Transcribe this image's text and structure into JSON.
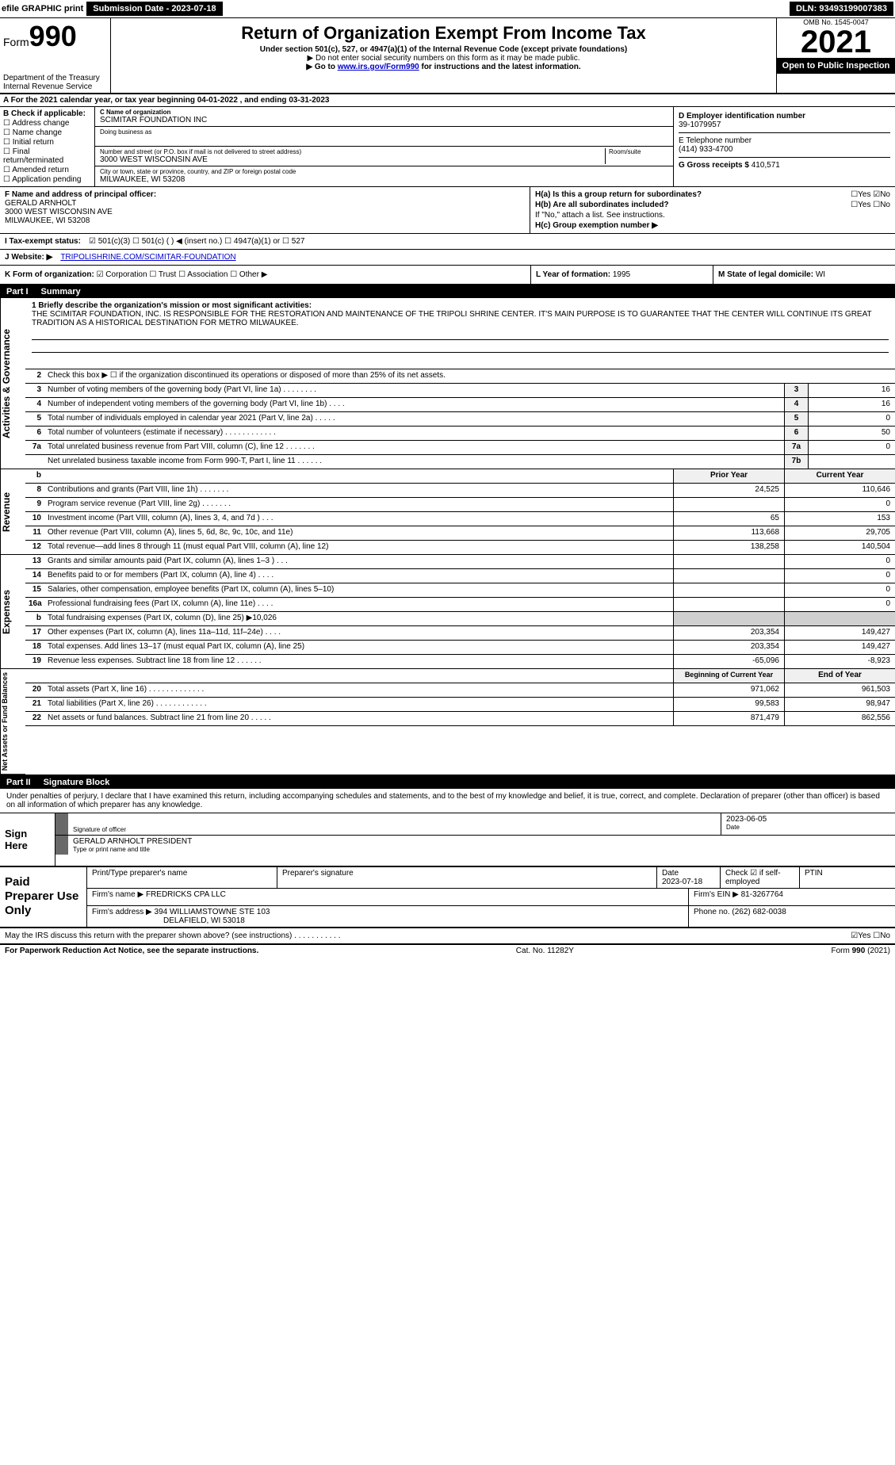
{
  "meta": {
    "efile_label": "efile GRAPHIC print",
    "submission_label": "Submission Date - 2023-07-18",
    "dln": "DLN: 93493199007383",
    "omb": "OMB No. 1545-0047",
    "year": "2021",
    "open_public": "Open to Public Inspection",
    "form_label": "Form",
    "form_num": "990",
    "dept": "Department of the Treasury",
    "irs": "Internal Revenue Service",
    "title": "Return of Organization Exempt From Income Tax",
    "subtitle": "Under section 501(c), 527, or 4947(a)(1) of the Internal Revenue Code (except private foundations)",
    "note1": "▶ Do not enter social security numbers on this form as it may be made public.",
    "note2_pre": "▶ Go to ",
    "note2_link": "www.irs.gov/Form990",
    "note2_post": " for instructions and the latest information."
  },
  "row_a": "A For the 2021 calendar year, or tax year beginning 04-01-2022   , and ending 03-31-2023",
  "box_b": {
    "title": "B Check if applicable:",
    "items": [
      "☐ Address change",
      "☐ Name change",
      "☐ Initial return",
      "☐ Final return/terminated",
      "☐ Amended return",
      "☐ Application pending"
    ]
  },
  "box_c": {
    "name_lbl": "C Name of organization",
    "name": "SCIMITAR FOUNDATION INC",
    "dba_lbl": "Doing business as",
    "addr_lbl": "Number and street (or P.O. box if mail is not delivered to street address)",
    "room_lbl": "Room/suite",
    "addr": "3000 WEST WISCONSIN AVE",
    "city_lbl": "City or town, state or province, country, and ZIP or foreign postal code",
    "city": "MILWAUKEE, WI  53208"
  },
  "box_d": {
    "lbl": "D Employer identification number",
    "val": "39-1079957"
  },
  "box_e": {
    "lbl": "E Telephone number",
    "val": "(414) 933-4700"
  },
  "box_g": {
    "lbl": "G Gross receipts $",
    "val": "410,571"
  },
  "box_f": {
    "lbl": "F Name and address of principal officer:",
    "name": "GERALD ARNHOLT",
    "addr1": "3000 WEST WISCONSIN AVE",
    "addr2": "MILWAUKEE, WI  53208"
  },
  "box_h": {
    "ha": "H(a)  Is this a group return for subordinates?",
    "ha_ans": "☐Yes ☑No",
    "hb": "H(b)  Are all subordinates included?",
    "hb_ans": "☐Yes ☐No",
    "hb_note": "If \"No,\" attach a list. See instructions.",
    "hc": "H(c)  Group exemption number ▶"
  },
  "row_i": {
    "lbl": "I  Tax-exempt status:",
    "opts": "☑ 501(c)(3)   ☐ 501(c) (  ) ◀ (insert no.)   ☐ 4947(a)(1) or   ☐ 527"
  },
  "row_j": {
    "lbl": "J  Website: ▶",
    "val": "TRIPOLISHRINE.COM/SCIMITAR-FOUNDATION"
  },
  "row_k": {
    "lbl": "K Form of organization:",
    "opts": "☑ Corporation  ☐ Trust  ☐ Association  ☐ Other ▶",
    "l_lbl": "L Year of formation:",
    "l_val": "1995",
    "m_lbl": "M State of legal domicile:",
    "m_val": "WI"
  },
  "part1": {
    "header_num": "Part I",
    "header_title": "Summary",
    "q1_lbl": "1 Briefly describe the organization's mission or most significant activities:",
    "q1_text": "THE SCIMITAR FOUNDATION, INC. IS RESPONSIBLE FOR THE RESTORATION AND MAINTENANCE OF THE TRIPOLI SHRINE CENTER. IT'S MAIN PURPOSE IS TO GUARANTEE THAT THE CENTER WILL CONTINUE ITS GREAT TRADITION AS A HISTORICAL DESTINATION FOR METRO MILWAUKEE.",
    "q2": "Check this box ▶ ☐ if the organization discontinued its operations or disposed of more than 25% of its net assets.",
    "tabs": {
      "gov": "Activities & Governance",
      "rev": "Revenue",
      "exp": "Expenses",
      "net": "Net Assets or Fund Balances"
    },
    "simple_rows": [
      {
        "n": "3",
        "d": "Number of voting members of the governing body (Part VI, line 1a)  .  .  .  .  .  .  .  .",
        "c": "3",
        "v": "16"
      },
      {
        "n": "4",
        "d": "Number of independent voting members of the governing body (Part VI, line 1b)  .  .  .  .",
        "c": "4",
        "v": "16"
      },
      {
        "n": "5",
        "d": "Total number of individuals employed in calendar year 2021 (Part V, line 2a)  .  .  .  .  .",
        "c": "5",
        "v": "0"
      },
      {
        "n": "6",
        "d": "Total number of volunteers (estimate if necessary)  .  .  .  .  .  .  .  .  .  .  .  .",
        "c": "6",
        "v": "50"
      },
      {
        "n": "7a",
        "d": "Total unrelated business revenue from Part VIII, column (C), line 12  .  .  .  .  .  .  .",
        "c": "7a",
        "v": "0"
      },
      {
        "n": "",
        "d": "Net unrelated business taxable income from Form 990-T, Part I, line 11  .  .  .  .  .  .",
        "c": "7b",
        "v": ""
      }
    ],
    "py_cy_header": {
      "n": "b",
      "py": "Prior Year",
      "cy": "Current Year"
    },
    "rev_rows": [
      {
        "n": "8",
        "d": "Contributions and grants (Part VIII, line 1h)  .  .  .  .  .  .  .",
        "py": "24,525",
        "cy": "110,646"
      },
      {
        "n": "9",
        "d": "Program service revenue (Part VIII, line 2g)  .  .  .  .  .  .  .",
        "py": "",
        "cy": "0"
      },
      {
        "n": "10",
        "d": "Investment income (Part VIII, column (A), lines 3, 4, and 7d )  .  .  .",
        "py": "65",
        "cy": "153"
      },
      {
        "n": "11",
        "d": "Other revenue (Part VIII, column (A), lines 5, 6d, 8c, 9c, 10c, and 11e)",
        "py": "113,668",
        "cy": "29,705"
      },
      {
        "n": "12",
        "d": "Total revenue—add lines 8 through 11 (must equal Part VIII, column (A), line 12)",
        "py": "138,258",
        "cy": "140,504"
      }
    ],
    "exp_rows": [
      {
        "n": "13",
        "d": "Grants and similar amounts paid (Part IX, column (A), lines 1–3 )  .  .  .",
        "py": "",
        "cy": "0"
      },
      {
        "n": "14",
        "d": "Benefits paid to or for members (Part IX, column (A), line 4)  .  .  .  .",
        "py": "",
        "cy": "0"
      },
      {
        "n": "15",
        "d": "Salaries, other compensation, employee benefits (Part IX, column (A), lines 5–10)",
        "py": "",
        "cy": "0"
      },
      {
        "n": "16a",
        "d": "Professional fundraising fees (Part IX, column (A), line 11e)  .  .  .  .",
        "py": "",
        "cy": "0"
      },
      {
        "n": "b",
        "d": "Total fundraising expenses (Part IX, column (D), line 25) ▶10,026",
        "py": "GRAY",
        "cy": "GRAY"
      },
      {
        "n": "17",
        "d": "Other expenses (Part IX, column (A), lines 11a–11d, 11f–24e)  .  .  .  .",
        "py": "203,354",
        "cy": "149,427"
      },
      {
        "n": "18",
        "d": "Total expenses. Add lines 13–17 (must equal Part IX, column (A), line 25)",
        "py": "203,354",
        "cy": "149,427"
      },
      {
        "n": "19",
        "d": "Revenue less expenses. Subtract line 18 from line 12  .  .  .  .  .  .",
        "py": "-65,096",
        "cy": "-8,923"
      }
    ],
    "net_header": {
      "py": "Beginning of Current Year",
      "cy": "End of Year"
    },
    "net_rows": [
      {
        "n": "20",
        "d": "Total assets (Part X, line 16)  .  .  .  .  .  .  .  .  .  .  .  .  .",
        "py": "971,062",
        "cy": "961,503"
      },
      {
        "n": "21",
        "d": "Total liabilities (Part X, line 26)  .  .  .  .  .  .  .  .  .  .  .  .",
        "py": "99,583",
        "cy": "98,947"
      },
      {
        "n": "22",
        "d": "Net assets or fund balances. Subtract line 21 from line 20  .  .  .  .  .",
        "py": "871,479",
        "cy": "862,556"
      }
    ]
  },
  "part2": {
    "header_num": "Part II",
    "header_title": "Signature Block",
    "intro": "Under penalties of perjury, I declare that I have examined this return, including accompanying schedules and statements, and to the best of my knowledge and belief, it is true, correct, and complete. Declaration of preparer (other than officer) is based on all information of which preparer has any knowledge.",
    "sign_here": "Sign Here",
    "sig_officer_lbl": "Signature of officer",
    "date_val": "2023-06-05",
    "date_lbl": "Date",
    "name_title": "GERALD ARNHOLT  PRESIDENT",
    "name_title_lbl": "Type or print name and title",
    "paid_lbl": "Paid Preparer Use Only",
    "prep_name_lbl": "Print/Type preparer's name",
    "prep_sig_lbl": "Preparer's signature",
    "prep_date_lbl": "Date",
    "prep_date": "2023-07-18",
    "self_emp_lbl": "Check ☑ if self-employed",
    "ptin_lbl": "PTIN",
    "firm_name_lbl": "Firm's name    ▶",
    "firm_name": "FREDRICKS CPA LLC",
    "firm_ein_lbl": "Firm's EIN ▶",
    "firm_ein": "81-3267764",
    "firm_addr_lbl": "Firm's address ▶",
    "firm_addr1": "394 WILLIAMSTOWNE STE 103",
    "firm_addr2": "DELAFIELD, WI  53018",
    "phone_lbl": "Phone no.",
    "phone": "(262) 682-0038",
    "discuss": "May the IRS discuss this return with the preparer shown above? (see instructions)  .  .  .  .  .  .  .  .  .  .  .",
    "discuss_ans": "☑Yes  ☐No"
  },
  "footer": {
    "left": "For Paperwork Reduction Act Notice, see the separate instructions.",
    "mid": "Cat. No. 11282Y",
    "right": "Form 990 (2021)"
  }
}
